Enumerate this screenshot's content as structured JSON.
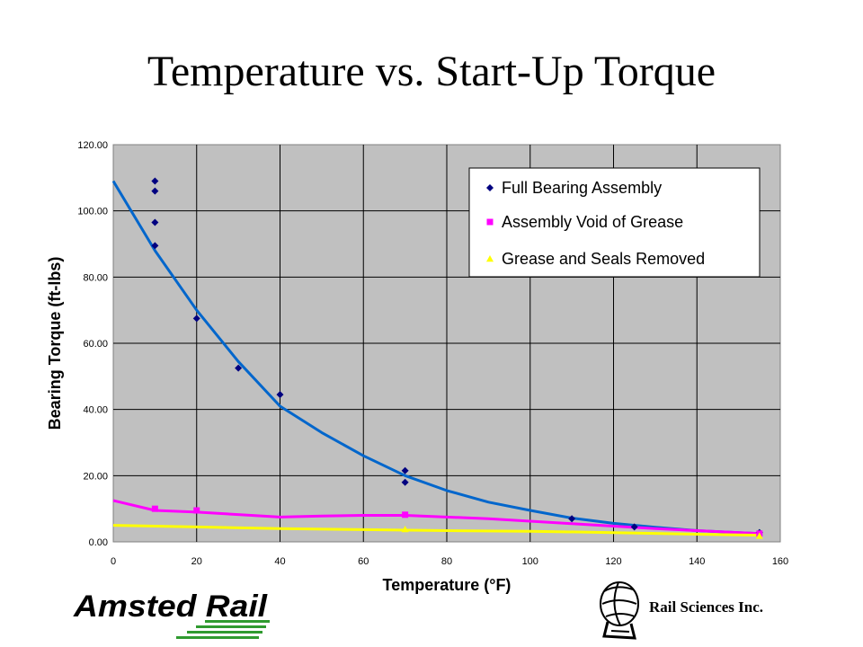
{
  "title": "Temperature vs. Start-Up Torque",
  "company_logo_text": "Amsted Rail",
  "partner_name": "Rail Sciences Inc.",
  "colors": {
    "plot_background": "#c0c0c0",
    "full_bearing": "#000080",
    "full_bearing_trend": "#0066cc",
    "void_grease": "#ff00ff",
    "seals_removed": "#ffff00",
    "logo_green": "#2f9a2f"
  },
  "chart_data": {
    "type": "scatter",
    "xlabel": "Temperature (°F)",
    "ylabel": "Bearing Torque (ft-lbs)",
    "xlim": [
      0,
      160
    ],
    "ylim": [
      0,
      120
    ],
    "x_ticks": [
      0,
      20,
      40,
      60,
      80,
      100,
      120,
      140,
      160
    ],
    "y_ticks": [
      "0.00",
      "20.00",
      "40.00",
      "60.00",
      "80.00",
      "100.00",
      "120.00"
    ],
    "grid": true,
    "legend_position": "top-right",
    "series": [
      {
        "name": "Full Bearing Assembly",
        "marker": "diamond",
        "color": "#000080",
        "points": [
          [
            10,
            109
          ],
          [
            10,
            106
          ],
          [
            10,
            96.5
          ],
          [
            10,
            89.5
          ],
          [
            20,
            67.5
          ],
          [
            30,
            52.5
          ],
          [
            40,
            44.5
          ],
          [
            70,
            21.5
          ],
          [
            70,
            18
          ],
          [
            110,
            7
          ],
          [
            125,
            4.5
          ],
          [
            155,
            2.8
          ]
        ],
        "trendline": [
          [
            0,
            109
          ],
          [
            10,
            88
          ],
          [
            20,
            70
          ],
          [
            30,
            54.5
          ],
          [
            40,
            41
          ],
          [
            50,
            33
          ],
          [
            60,
            26
          ],
          [
            70,
            20
          ],
          [
            80,
            15.5
          ],
          [
            90,
            12
          ],
          [
            100,
            9.5
          ],
          [
            110,
            7.2
          ],
          [
            120,
            5.6
          ],
          [
            130,
            4.4
          ],
          [
            140,
            3.4
          ],
          [
            150,
            2.8
          ],
          [
            155,
            2.5
          ]
        ]
      },
      {
        "name": "Assembly Void of Grease",
        "marker": "square",
        "color": "#ff00ff",
        "points": [
          [
            10,
            10
          ],
          [
            20,
            9.5
          ],
          [
            70,
            8.2
          ],
          [
            155,
            2.5
          ]
        ],
        "trendline": [
          [
            0,
            12.5
          ],
          [
            10,
            9.5
          ],
          [
            20,
            9
          ],
          [
            40,
            7.5
          ],
          [
            50,
            7.8
          ],
          [
            60,
            8
          ],
          [
            70,
            8
          ],
          [
            90,
            7
          ],
          [
            110,
            5.5
          ],
          [
            130,
            4
          ],
          [
            155,
            2.5
          ]
        ]
      },
      {
        "name": "Grease and Seals Removed",
        "marker": "triangle",
        "color": "#ffff00",
        "points": [
          [
            70,
            3.8
          ],
          [
            155,
            1.8
          ]
        ],
        "trendline": [
          [
            0,
            5
          ],
          [
            20,
            4.5
          ],
          [
            40,
            4
          ],
          [
            60,
            3.7
          ],
          [
            80,
            3.4
          ],
          [
            100,
            3.2
          ],
          [
            120,
            2.8
          ],
          [
            140,
            2.3
          ],
          [
            155,
            2
          ]
        ]
      }
    ]
  }
}
